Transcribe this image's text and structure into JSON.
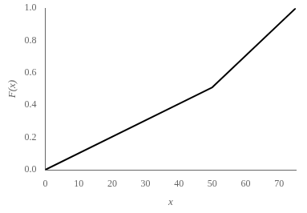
{
  "chart_data": {
    "type": "line",
    "x": [
      0,
      50,
      75
    ],
    "values": [
      0,
      0.51,
      1.0
    ],
    "color": "#000000",
    "xlim": [
      0,
      75
    ],
    "ylim": [
      0,
      1.0
    ],
    "xticks": [
      0,
      10,
      20,
      30,
      40,
      50,
      60,
      70
    ],
    "yticks": [
      {
        "value": 0,
        "label": "0.0"
      },
      0.2,
      0.4,
      0.6,
      0.8,
      {
        "value": 1,
        "label": "1.0"
      }
    ],
    "xlabel": "x",
    "ylabel": "F(x)",
    "grid": false
  }
}
